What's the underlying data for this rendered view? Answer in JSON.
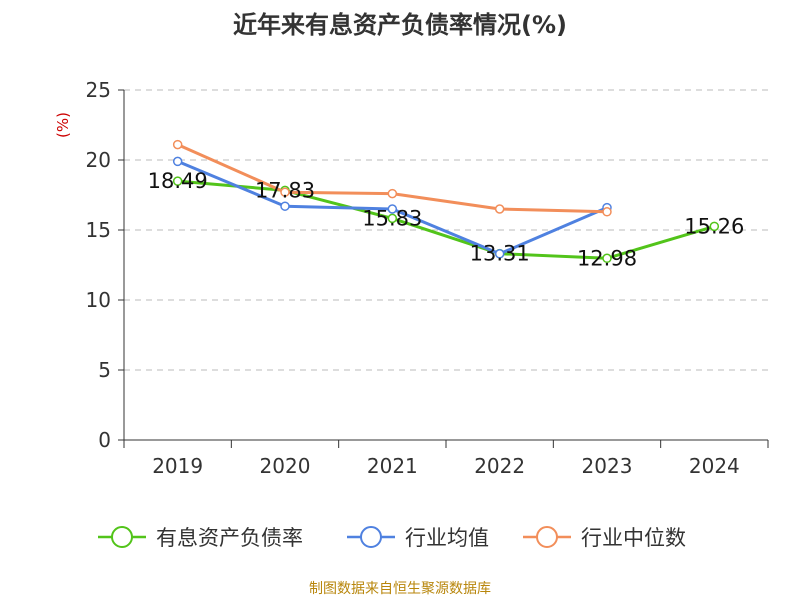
{
  "chart_data": {
    "type": "line",
    "title": "近年来有息资产负债率情况(%)",
    "ylabel": "(%)",
    "categories": [
      "2019",
      "2020",
      "2021",
      "2022",
      "2023",
      "2024"
    ],
    "ylim": [
      0,
      25
    ],
    "yticks": [
      0,
      5,
      10,
      15,
      20,
      25
    ],
    "grid": true,
    "legend_position": "bottom",
    "series": [
      {
        "name": "有息资产负债率",
        "color": "#52c41a",
        "values": [
          18.49,
          17.83,
          15.83,
          13.31,
          12.98,
          15.26
        ],
        "labels": [
          "18.49",
          "17.83",
          "15.83",
          "13.31",
          "12.98",
          "15.26"
        ]
      },
      {
        "name": "行业均值",
        "color": "#4f81e0",
        "values": [
          19.9,
          16.7,
          16.5,
          13.3,
          16.6,
          null
        ]
      },
      {
        "name": "行业中位数",
        "color": "#f28e5a",
        "values": [
          21.1,
          17.7,
          17.6,
          16.5,
          16.3,
          null
        ]
      }
    ],
    "source": "制图数据来自恒生聚源数据库"
  }
}
